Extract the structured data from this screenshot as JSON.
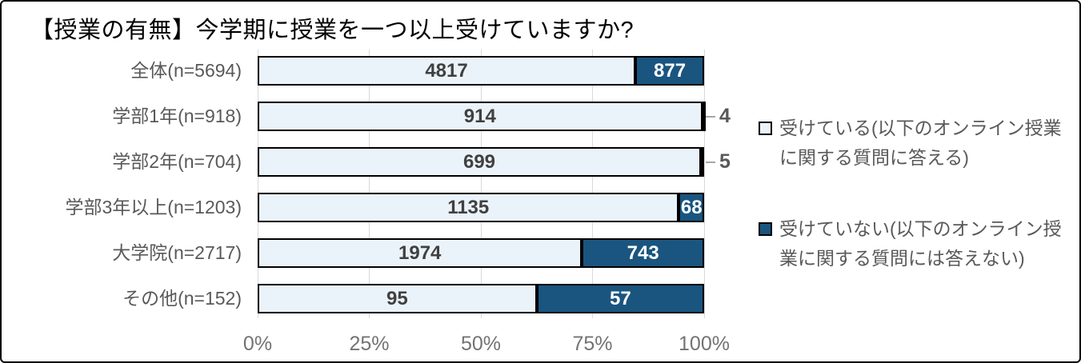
{
  "title": "【授業の有無】今学期に授業を一つ以上受けていますか?",
  "colors": {
    "yes_fill": "#EBF3FA",
    "no_fill": "#1A5580",
    "bar_border": "#000000",
    "gridline": "#D9D9D9",
    "axis_text": "#737373",
    "category_text": "#595959",
    "value_text_light": "#404040",
    "value_text_dark": "#FFFFFF",
    "leader_line": "#A6A6A6"
  },
  "chart_data": {
    "type": "bar",
    "stacked": true,
    "orientation": "horizontal",
    "x_axis_unit": "percent_of_row_total",
    "title": "【授業の有無】今学期に授業を一つ以上受けていますか?",
    "categories": [
      "全体(n=5694)",
      "学部1年(n=918)",
      "学部2年(n=704)",
      "学部3年以上(n=1203)",
      "大学院(n=2717)",
      "その他(n=152)"
    ],
    "series": [
      {
        "name": "受けている(以下のオンライン授業に関する質問に答える)",
        "values": [
          4817,
          914,
          699,
          1135,
          1974,
          95
        ],
        "color": "#EBF3FA"
      },
      {
        "name": "受けていない(以下のオンライン授業に関する質問には答えない)",
        "values": [
          877,
          4,
          5,
          68,
          743,
          57
        ],
        "color": "#1A5580"
      }
    ],
    "x_ticks": [
      "0%",
      "25%",
      "50%",
      "75%",
      "100%"
    ],
    "x_range": [
      0,
      100
    ],
    "grid": true,
    "legend_position": "right",
    "outside_value_label_rows": [
      1,
      2
    ]
  }
}
